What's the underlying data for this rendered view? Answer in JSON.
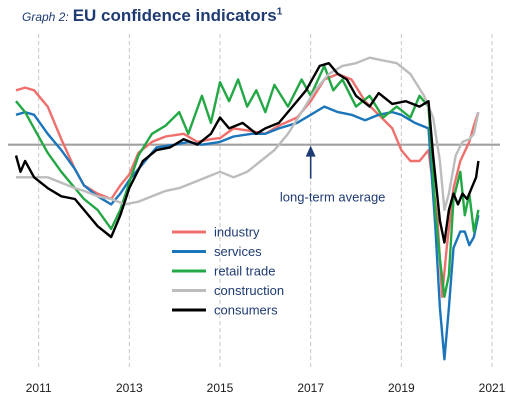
{
  "header": {
    "prefix": "Graph 2:",
    "title": "EU confidence indicators",
    "footnote_mark": "1"
  },
  "chart_data": {
    "type": "line",
    "xlim": [
      2010.5,
      2021.0
    ],
    "ylim": [
      -4.0,
      2.0
    ],
    "grid": "vertical dashed at each year",
    "x_ticks": [
      2011,
      2013,
      2015,
      2017,
      2019,
      2021
    ],
    "tick_labels": [
      "2011",
      "2013",
      "2015",
      "2017",
      "2019",
      "2021"
    ],
    "reference_line": {
      "value": 0,
      "color": "#a0a0a0"
    },
    "annotation": {
      "text": "long-term average",
      "points_to_x": 2017.0,
      "points_to_y": 0.0
    },
    "legend_position": "center-left",
    "series": [
      {
        "name": "industry",
        "color": "#ef6f6c",
        "points": [
          [
            2010.5,
            1.0
          ],
          [
            2010.7,
            1.05
          ],
          [
            2010.9,
            1.0
          ],
          [
            2011.2,
            0.7
          ],
          [
            2011.5,
            0.1
          ],
          [
            2011.8,
            -0.45
          ],
          [
            2012.0,
            -0.75
          ],
          [
            2012.3,
            -0.9
          ],
          [
            2012.6,
            -1.0
          ],
          [
            2012.8,
            -0.75
          ],
          [
            2013.0,
            -0.55
          ],
          [
            2013.2,
            -0.15
          ],
          [
            2013.5,
            0.05
          ],
          [
            2013.8,
            0.15
          ],
          [
            2014.2,
            0.2
          ],
          [
            2014.5,
            0.05
          ],
          [
            2014.8,
            0.1
          ],
          [
            2015.0,
            0.12
          ],
          [
            2015.3,
            0.3
          ],
          [
            2015.7,
            0.25
          ],
          [
            2016.0,
            0.2
          ],
          [
            2016.3,
            0.35
          ],
          [
            2016.7,
            0.5
          ],
          [
            2017.0,
            0.8
          ],
          [
            2017.3,
            1.2
          ],
          [
            2017.6,
            1.3
          ],
          [
            2017.9,
            1.2
          ],
          [
            2018.2,
            0.8
          ],
          [
            2018.5,
            0.55
          ],
          [
            2018.8,
            0.3
          ],
          [
            2019.0,
            -0.1
          ],
          [
            2019.2,
            -0.3
          ],
          [
            2019.4,
            -0.3
          ],
          [
            2019.6,
            -0.1
          ],
          [
            2019.8,
            -1.4
          ],
          [
            2019.9,
            -2.8
          ],
          [
            2020.0,
            -1.9
          ],
          [
            2020.15,
            -0.8
          ],
          [
            2020.3,
            -0.3
          ],
          [
            2020.5,
            0.05
          ],
          [
            2020.6,
            0.35
          ],
          [
            2020.7,
            0.6
          ]
        ]
      },
      {
        "name": "services",
        "color": "#1b75bb",
        "points": [
          [
            2010.5,
            0.55
          ],
          [
            2010.7,
            0.6
          ],
          [
            2010.9,
            0.55
          ],
          [
            2011.2,
            0.2
          ],
          [
            2011.5,
            -0.1
          ],
          [
            2011.8,
            -0.45
          ],
          [
            2012.0,
            -0.75
          ],
          [
            2012.3,
            -0.95
          ],
          [
            2012.6,
            -1.1
          ],
          [
            2012.8,
            -0.9
          ],
          [
            2013.0,
            -0.65
          ],
          [
            2013.3,
            -0.35
          ],
          [
            2013.6,
            -0.05
          ],
          [
            2014.0,
            0.0
          ],
          [
            2014.3,
            0.05
          ],
          [
            2014.6,
            0.0
          ],
          [
            2015.0,
            0.05
          ],
          [
            2015.3,
            0.15
          ],
          [
            2015.7,
            0.2
          ],
          [
            2016.0,
            0.2
          ],
          [
            2016.3,
            0.3
          ],
          [
            2016.7,
            0.4
          ],
          [
            2017.0,
            0.55
          ],
          [
            2017.3,
            0.7
          ],
          [
            2017.6,
            0.6
          ],
          [
            2017.9,
            0.55
          ],
          [
            2018.2,
            0.45
          ],
          [
            2018.5,
            0.55
          ],
          [
            2018.8,
            0.6
          ],
          [
            2019.0,
            0.55
          ],
          [
            2019.3,
            0.4
          ],
          [
            2019.6,
            0.3
          ],
          [
            2019.75,
            -1.5
          ],
          [
            2019.85,
            -3.0
          ],
          [
            2019.95,
            -3.95
          ],
          [
            2020.05,
            -3.0
          ],
          [
            2020.15,
            -1.9
          ],
          [
            2020.3,
            -1.6
          ],
          [
            2020.4,
            -1.6
          ],
          [
            2020.5,
            -1.85
          ],
          [
            2020.6,
            -1.7
          ],
          [
            2020.7,
            -1.3
          ]
        ]
      },
      {
        "name": "retail trade",
        "color": "#23a845",
        "points": [
          [
            2010.5,
            0.8
          ],
          [
            2010.7,
            0.6
          ],
          [
            2010.9,
            0.3
          ],
          [
            2011.2,
            -0.15
          ],
          [
            2011.5,
            -0.5
          ],
          [
            2011.8,
            -0.8
          ],
          [
            2012.0,
            -1.0
          ],
          [
            2012.3,
            -1.2
          ],
          [
            2012.6,
            -1.55
          ],
          [
            2012.8,
            -1.2
          ],
          [
            2013.0,
            -0.7
          ],
          [
            2013.2,
            -0.2
          ],
          [
            2013.5,
            0.2
          ],
          [
            2013.8,
            0.35
          ],
          [
            2014.1,
            0.6
          ],
          [
            2014.3,
            0.2
          ],
          [
            2014.6,
            0.9
          ],
          [
            2014.8,
            0.4
          ],
          [
            2015.0,
            1.15
          ],
          [
            2015.2,
            0.8
          ],
          [
            2015.4,
            1.2
          ],
          [
            2015.6,
            0.7
          ],
          [
            2015.8,
            1.0
          ],
          [
            2016.0,
            0.6
          ],
          [
            2016.2,
            1.1
          ],
          [
            2016.5,
            0.7
          ],
          [
            2016.8,
            1.2
          ],
          [
            2017.0,
            0.9
          ],
          [
            2017.3,
            1.45
          ],
          [
            2017.5,
            1.0
          ],
          [
            2017.7,
            1.2
          ],
          [
            2018.0,
            0.7
          ],
          [
            2018.3,
            0.9
          ],
          [
            2018.6,
            0.5
          ],
          [
            2018.9,
            0.7
          ],
          [
            2019.2,
            0.5
          ],
          [
            2019.4,
            0.9
          ],
          [
            2019.6,
            0.7
          ],
          [
            2019.75,
            -1.2
          ],
          [
            2019.85,
            -2.1
          ],
          [
            2019.95,
            -2.8
          ],
          [
            2020.05,
            -2.4
          ],
          [
            2020.15,
            -1.0
          ],
          [
            2020.3,
            -0.5
          ],
          [
            2020.4,
            -1.3
          ],
          [
            2020.5,
            -0.9
          ],
          [
            2020.6,
            -1.6
          ],
          [
            2020.7,
            -1.2
          ]
        ]
      },
      {
        "name": "construction",
        "color": "#bcbcbc",
        "points": [
          [
            2010.5,
            -0.6
          ],
          [
            2010.8,
            -0.6
          ],
          [
            2011.2,
            -0.6
          ],
          [
            2011.5,
            -0.7
          ],
          [
            2011.8,
            -0.8
          ],
          [
            2012.0,
            -0.85
          ],
          [
            2012.3,
            -0.95
          ],
          [
            2012.6,
            -1.0
          ],
          [
            2012.9,
            -1.1
          ],
          [
            2013.2,
            -1.05
          ],
          [
            2013.5,
            -0.95
          ],
          [
            2013.8,
            -0.85
          ],
          [
            2014.1,
            -0.8
          ],
          [
            2014.4,
            -0.7
          ],
          [
            2014.7,
            -0.6
          ],
          [
            2015.0,
            -0.5
          ],
          [
            2015.3,
            -0.6
          ],
          [
            2015.6,
            -0.5
          ],
          [
            2015.9,
            -0.3
          ],
          [
            2016.2,
            -0.1
          ],
          [
            2016.5,
            0.2
          ],
          [
            2016.8,
            0.6
          ],
          [
            2017.1,
            1.0
          ],
          [
            2017.4,
            1.3
          ],
          [
            2017.7,
            1.45
          ],
          [
            2018.0,
            1.5
          ],
          [
            2018.3,
            1.6
          ],
          [
            2018.6,
            1.55
          ],
          [
            2018.9,
            1.5
          ],
          [
            2019.2,
            1.3
          ],
          [
            2019.5,
            0.9
          ],
          [
            2019.7,
            0.5
          ],
          [
            2019.85,
            -0.3
          ],
          [
            2019.95,
            -1.2
          ],
          [
            2020.05,
            -0.9
          ],
          [
            2020.2,
            -0.2
          ],
          [
            2020.35,
            0.05
          ],
          [
            2020.5,
            0.1
          ],
          [
            2020.6,
            0.2
          ],
          [
            2020.7,
            0.6
          ]
        ]
      },
      {
        "name": "consumers",
        "color": "#000000",
        "points": [
          [
            2010.5,
            -0.2
          ],
          [
            2010.6,
            -0.5
          ],
          [
            2010.7,
            -0.3
          ],
          [
            2010.9,
            -0.6
          ],
          [
            2011.2,
            -0.8
          ],
          [
            2011.5,
            -0.95
          ],
          [
            2011.8,
            -1.0
          ],
          [
            2012.0,
            -1.2
          ],
          [
            2012.3,
            -1.5
          ],
          [
            2012.6,
            -1.7
          ],
          [
            2012.8,
            -1.3
          ],
          [
            2013.0,
            -0.8
          ],
          [
            2013.3,
            -0.3
          ],
          [
            2013.6,
            -0.1
          ],
          [
            2013.9,
            -0.05
          ],
          [
            2014.2,
            0.1
          ],
          [
            2014.5,
            0.0
          ],
          [
            2014.8,
            0.2
          ],
          [
            2015.0,
            0.5
          ],
          [
            2015.2,
            0.3
          ],
          [
            2015.5,
            0.4
          ],
          [
            2015.8,
            0.2
          ],
          [
            2016.0,
            0.3
          ],
          [
            2016.3,
            0.4
          ],
          [
            2016.6,
            0.7
          ],
          [
            2016.9,
            1.0
          ],
          [
            2017.2,
            1.45
          ],
          [
            2017.4,
            1.5
          ],
          [
            2017.6,
            1.3
          ],
          [
            2017.8,
            1.2
          ],
          [
            2018.0,
            0.9
          ],
          [
            2018.3,
            0.7
          ],
          [
            2018.5,
            0.95
          ],
          [
            2018.8,
            0.75
          ],
          [
            2019.1,
            0.8
          ],
          [
            2019.4,
            0.7
          ],
          [
            2019.6,
            0.8
          ],
          [
            2019.7,
            -0.2
          ],
          [
            2019.85,
            -1.4
          ],
          [
            2019.95,
            -1.8
          ],
          [
            2020.05,
            -1.2
          ],
          [
            2020.15,
            -0.9
          ],
          [
            2020.25,
            -1.1
          ],
          [
            2020.35,
            -0.9
          ],
          [
            2020.45,
            -1.0
          ],
          [
            2020.55,
            -0.8
          ],
          [
            2020.65,
            -0.6
          ],
          [
            2020.7,
            -0.3
          ]
        ]
      }
    ]
  }
}
